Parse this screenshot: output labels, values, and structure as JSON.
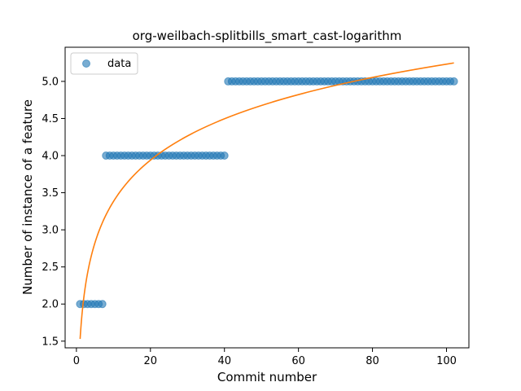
{
  "chart_data": {
    "type": "scatter",
    "title": "org-weilbach-splitbills_smart_cast-logarithm",
    "xlabel": "Commit number",
    "ylabel": "Number of instance of a feature",
    "xlim": [
      -3.05,
      106.05
    ],
    "ylim": [
      1.41,
      5.46
    ],
    "x_ticks": [
      0,
      20,
      40,
      60,
      80,
      100
    ],
    "y_ticks": [
      1.5,
      2.0,
      2.5,
      3.0,
      3.5,
      4.0,
      4.5,
      5.0
    ],
    "x_tick_labels": [
      "0",
      "20",
      "40",
      "60",
      "80",
      "100"
    ],
    "y_tick_labels": [
      "1.5",
      "2.0",
      "2.5",
      "3.0",
      "3.5",
      "4.0",
      "4.5",
      "5.0"
    ],
    "grid": false,
    "legend": {
      "placement": "upper-left",
      "entries": [
        "data"
      ]
    },
    "series": [
      {
        "name": "data",
        "kind": "scatter",
        "color": "#1f77b4",
        "segments": [
          {
            "x_from": 1,
            "x_to": 7,
            "y": 2.0
          },
          {
            "x_from": 8,
            "x_to": 40,
            "y": 4.0
          },
          {
            "x_from": 41,
            "x_to": 102,
            "y": 5.0
          }
        ]
      },
      {
        "kind": "line",
        "color": "#ff7f0e",
        "fit": {
          "model": "logarithmic",
          "a": 1.53,
          "b": 0.804
        },
        "x_range": [
          1,
          102
        ]
      }
    ]
  }
}
